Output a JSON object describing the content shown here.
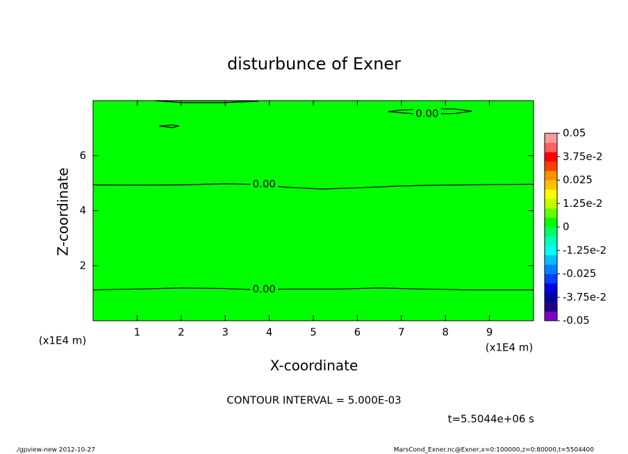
{
  "chart_data": {
    "type": "contour",
    "title": "disturbunce of Exner",
    "x_label": "X-coordinate",
    "y_label": "Z-coordinate",
    "x_unit": "(x1E4 m)",
    "y_unit": "(x1E4 m)",
    "xlim": [
      0,
      10
    ],
    "xticks": [
      1,
      2,
      3,
      4,
      5,
      6,
      7,
      8,
      9
    ],
    "ylim": [
      0,
      8
    ],
    "yticks": [
      2,
      4,
      6
    ],
    "field_color": "#00ff00",
    "line_color": "#000000",
    "contours": [
      {
        "label": "0.00",
        "x": [
          0,
          1,
          2,
          3,
          3.6,
          4.5,
          5.5,
          6.5,
          7.5,
          8.5,
          10
        ],
        "z": [
          1.12,
          1.15,
          1.19,
          1.17,
          1.13,
          1.15,
          1.15,
          1.19,
          1.15,
          1.12,
          1.12
        ]
      },
      {
        "label": "0.00",
        "x": [
          0,
          1,
          2,
          3,
          3.6,
          4.5,
          5.2,
          6,
          7,
          8,
          9,
          10
        ],
        "z": [
          4.94,
          4.93,
          4.94,
          4.98,
          4.96,
          4.84,
          4.79,
          4.83,
          4.9,
          4.93,
          4.95,
          4.96
        ]
      },
      {
        "label": "0.00",
        "x": [
          6.7,
          7.0,
          7.5,
          8.2,
          8.6,
          8.2,
          7.3,
          6.7
        ],
        "z": [
          7.6,
          7.66,
          7.7,
          7.7,
          7.62,
          7.53,
          7.52,
          7.6
        ]
      },
      {
        "x": [
          1.5,
          1.8,
          1.95,
          1.8,
          1.5
        ],
        "z": [
          7.08,
          7.12,
          7.08,
          7.02,
          7.08
        ]
      },
      {
        "x": [
          1.4,
          2.0,
          3.0,
          3.75,
          3.0,
          2.0,
          1.4
        ],
        "z": [
          8.0,
          7.93,
          7.93,
          7.98,
          8.0,
          8.0,
          8.0
        ]
      }
    ],
    "colorbar": {
      "clim": [
        -0.05,
        0.05
      ],
      "colors": [
        "#8000c0",
        "#200080",
        "#0000a0",
        "#0000e0",
        "#0040ff",
        "#0080ff",
        "#00c0ff",
        "#00ffff",
        "#00ffc0",
        "#00ff60",
        "#00ff00",
        "#60ff00",
        "#c0ff00",
        "#ffff00",
        "#ffc000",
        "#ff9000",
        "#ff4000",
        "#ff0000",
        "#ff6060",
        "#ff9a9a"
      ],
      "ticks": [
        0.05,
        {
          "value": 0.0375,
          "label": "3.75e-2"
        },
        0.025,
        {
          "value": 0.0125,
          "label": "1.25e-2"
        },
        0,
        {
          "value": -0.0125,
          "label": "-1.25e-2"
        },
        -0.025,
        {
          "value": -0.0375,
          "label": "-3.75e-2"
        },
        -0.05
      ]
    },
    "contour_interval_text": "CONTOUR INTERVAL = 5.000E-03",
    "time_text": "t=5.5044e+06 s",
    "footer_left": "./gpview-new  2012-10-27",
    "footer_right": "MarsCond_Exner.nc@Exner,x=0:100000,z=0:80000,t=5504400"
  }
}
